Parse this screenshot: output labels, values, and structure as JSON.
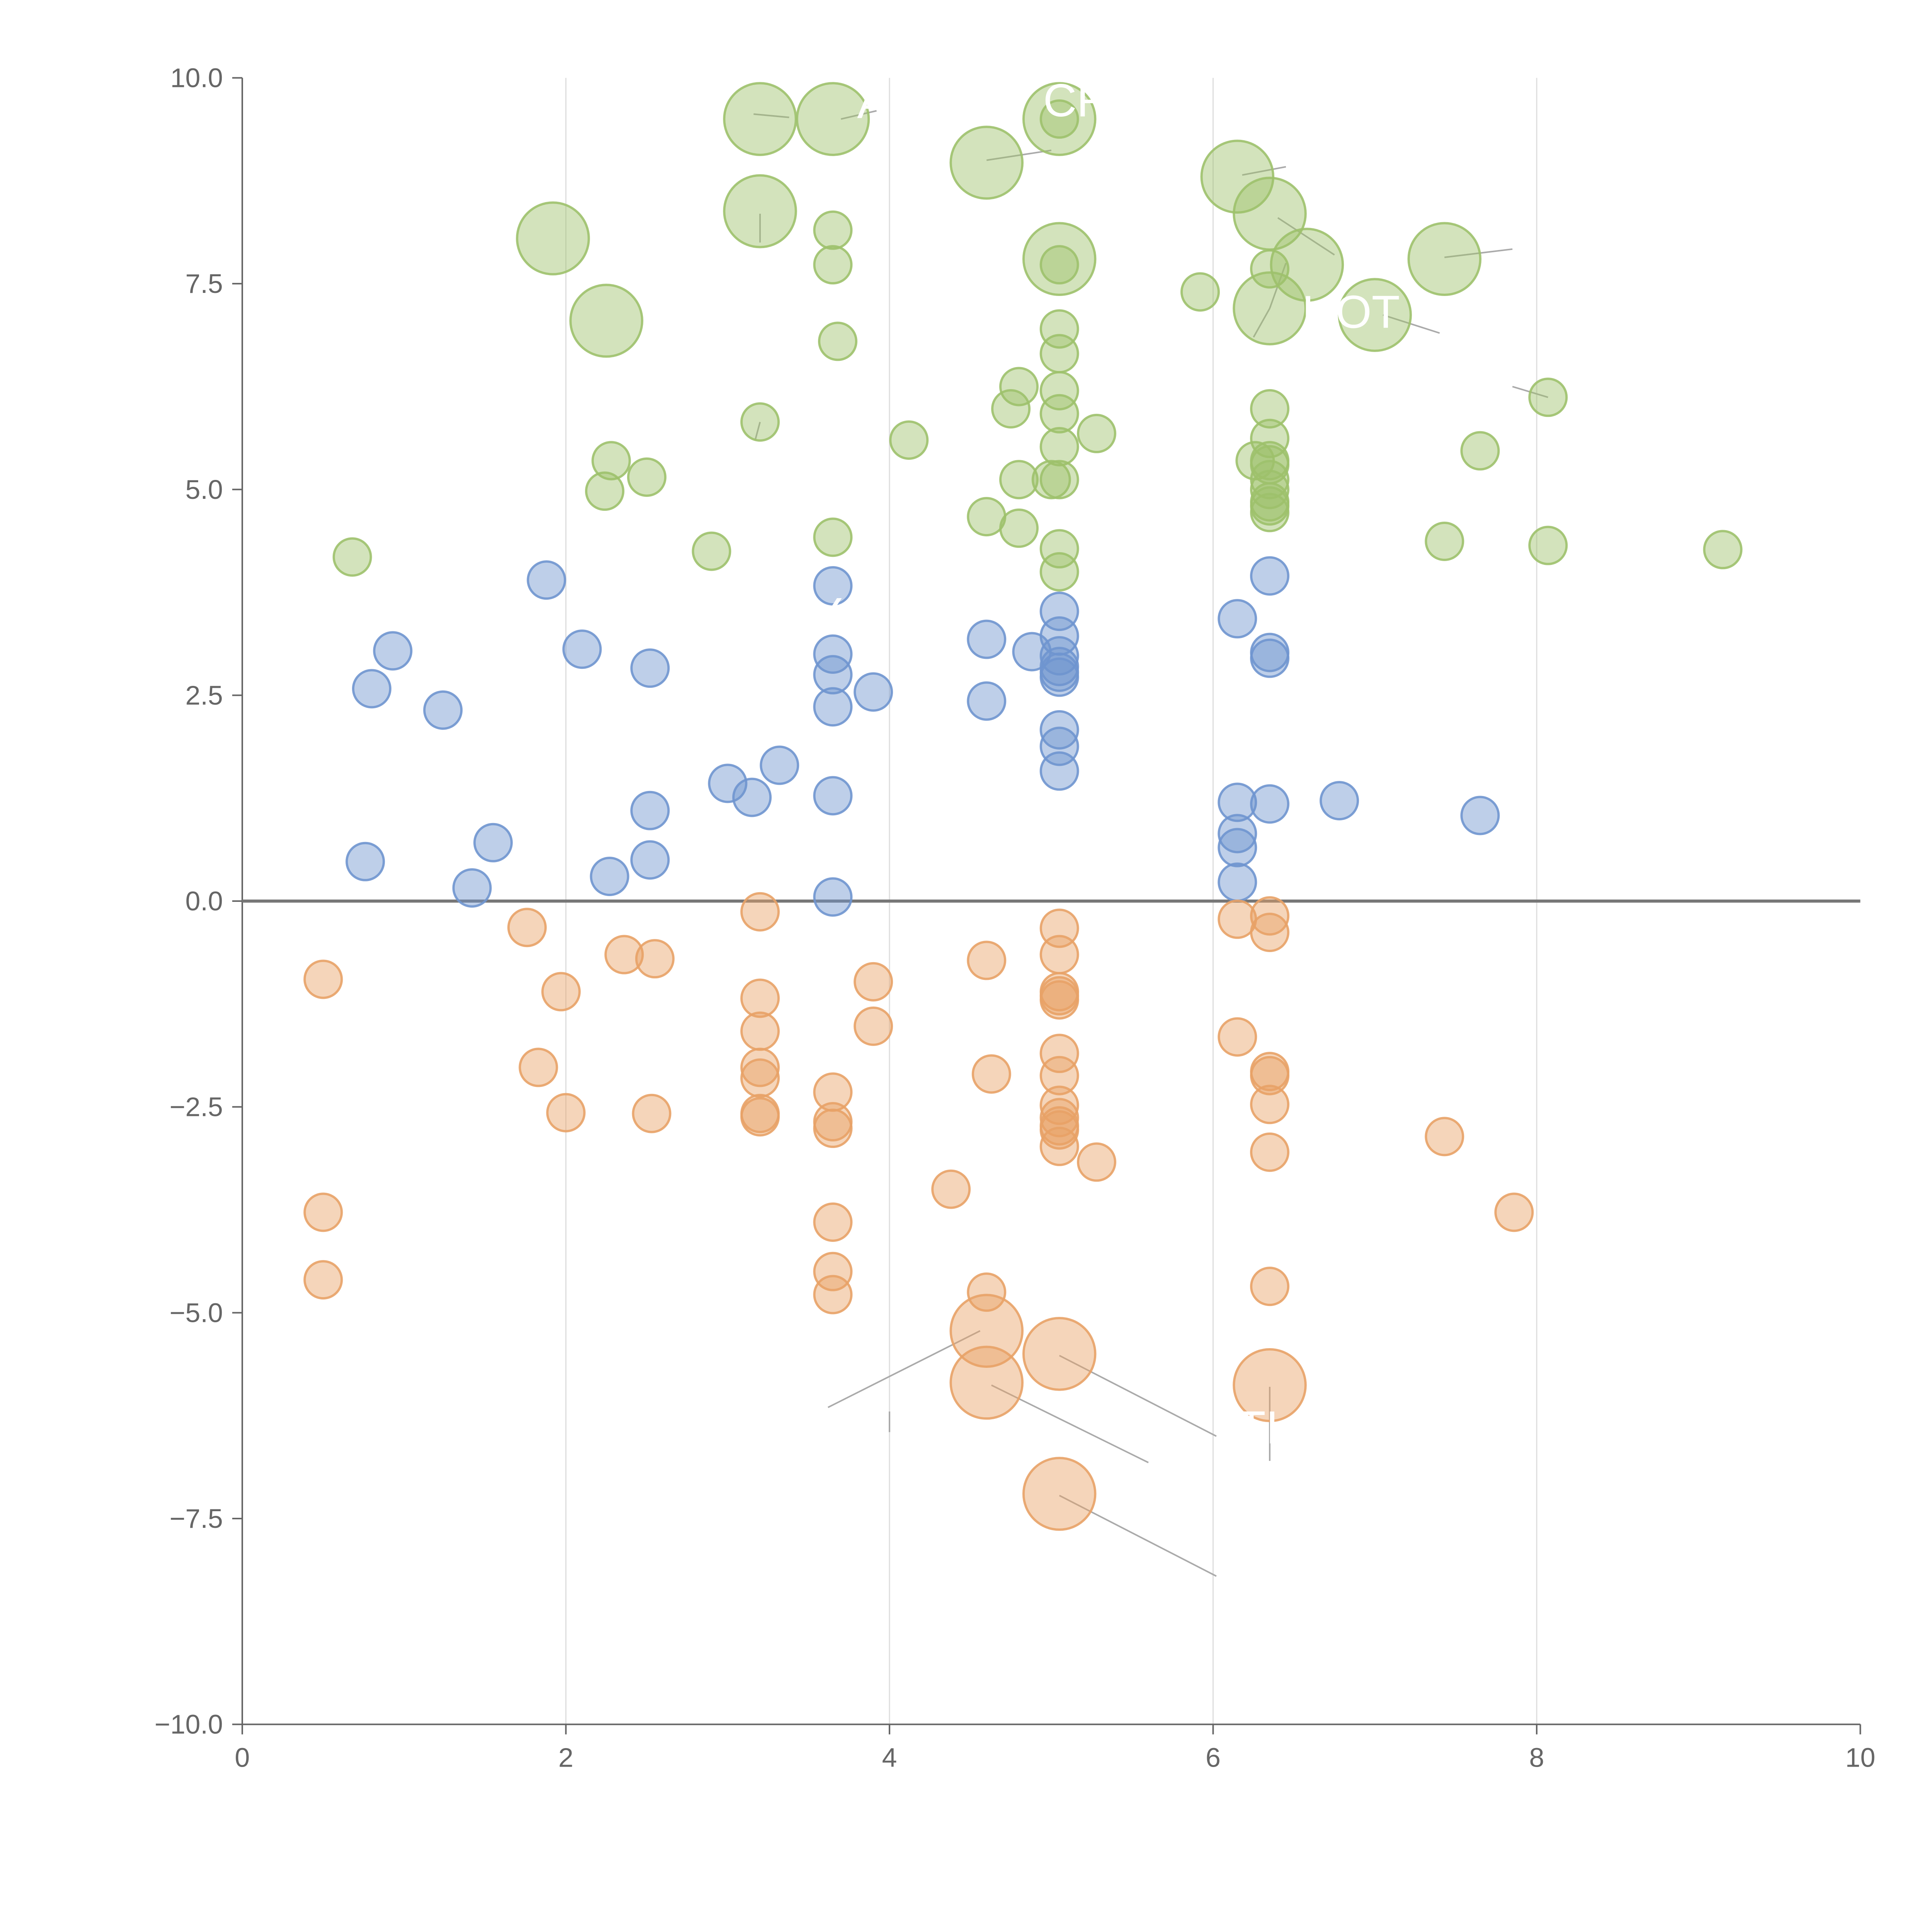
{
  "chart_data": {
    "type": "scatter",
    "title": "",
    "xlabel": "",
    "ylabel": "",
    "xlim": [
      0,
      10
    ],
    "ylim": [
      -10,
      10
    ],
    "grid": "vertical lines at 2, 4, 6, 8",
    "zero_line": true,
    "x_ticks": [
      "0",
      "2",
      "4",
      "6",
      "8",
      "10"
    ],
    "y_ticks": [
      "−10.0",
      "−7.5",
      "−5.0",
      "−2.5",
      "0.0",
      "2.5",
      "5.0",
      "7.5",
      "10.0"
    ],
    "colors": {
      "green": "#9dc16b",
      "blue": "#6f95cf",
      "orange": "#e8a267"
    },
    "series": [
      {
        "name": "green",
        "color": "#9dc16b",
        "points": [
          [
            3.2,
            9.5,
            "large"
          ],
          [
            3.65,
            9.5,
            "large"
          ],
          [
            5.05,
            9.5,
            "large"
          ],
          [
            5.05,
            9.5,
            "small"
          ],
          [
            4.6,
            8.97,
            "large"
          ],
          [
            6.15,
            8.8,
            "large"
          ],
          [
            1.92,
            8.05,
            "large"
          ],
          [
            3.2,
            8.38,
            "large"
          ],
          [
            6.35,
            8.35,
            "large"
          ],
          [
            3.65,
            8.15,
            "small"
          ],
          [
            3.65,
            7.73,
            "small"
          ],
          [
            5.05,
            7.8,
            "large"
          ],
          [
            5.05,
            7.73,
            "small"
          ],
          [
            6.58,
            7.73,
            "large"
          ],
          [
            6.35,
            7.68,
            "small"
          ],
          [
            7.43,
            7.8,
            "large"
          ],
          [
            2.25,
            7.05,
            "large"
          ],
          [
            6.35,
            7.2,
            "large"
          ],
          [
            7.0,
            7.12,
            "large"
          ],
          [
            5.92,
            7.4,
            "small"
          ],
          [
            3.68,
            6.8,
            "small"
          ],
          [
            5.05,
            6.95,
            "small"
          ],
          [
            5.05,
            6.65,
            "small"
          ],
          [
            4.8,
            6.25,
            "small"
          ],
          [
            5.05,
            6.2,
            "small"
          ],
          [
            8.07,
            6.12,
            "small"
          ],
          [
            4.75,
            5.98,
            "small"
          ],
          [
            6.35,
            5.98,
            "small"
          ],
          [
            5.05,
            5.92,
            "small"
          ],
          [
            3.2,
            5.82,
            "small"
          ],
          [
            5.28,
            5.68,
            "small"
          ],
          [
            4.12,
            5.6,
            "small"
          ],
          [
            6.35,
            5.62,
            "small"
          ],
          [
            5.05,
            5.52,
            "small"
          ],
          [
            7.65,
            5.47,
            "small"
          ],
          [
            2.28,
            5.35,
            "small"
          ],
          [
            6.26,
            5.35,
            "small"
          ],
          [
            6.35,
            5.35,
            "small"
          ],
          [
            6.35,
            5.3,
            "small"
          ],
          [
            2.5,
            5.15,
            "small"
          ],
          [
            4.8,
            5.12,
            "small"
          ],
          [
            5.0,
            5.12,
            "small"
          ],
          [
            5.05,
            5.12,
            "small"
          ],
          [
            6.35,
            5.12,
            "small"
          ],
          [
            6.35,
            5.0,
            "small"
          ],
          [
            2.24,
            4.98,
            "small"
          ],
          [
            6.35,
            4.85,
            "small"
          ],
          [
            6.35,
            4.8,
            "small"
          ],
          [
            6.35,
            4.72,
            "small"
          ],
          [
            4.6,
            4.67,
            "small"
          ],
          [
            4.8,
            4.53,
            "small"
          ],
          [
            3.65,
            4.42,
            "small"
          ],
          [
            7.43,
            4.37,
            "small"
          ],
          [
            8.07,
            4.32,
            "small"
          ],
          [
            5.05,
            4.28,
            "small"
          ],
          [
            9.15,
            4.27,
            "small"
          ],
          [
            2.9,
            4.25,
            "small"
          ],
          [
            0.68,
            4.18,
            "small"
          ],
          [
            5.05,
            4.0,
            "small"
          ]
        ]
      },
      {
        "name": "blue",
        "color": "#6f95cf",
        "points": [
          [
            1.88,
            3.9,
            "small"
          ],
          [
            6.35,
            3.95,
            "small"
          ],
          [
            3.65,
            3.83,
            "small"
          ],
          [
            5.05,
            3.52,
            "small"
          ],
          [
            6.15,
            3.43,
            "small"
          ],
          [
            5.05,
            3.22,
            "small"
          ],
          [
            4.6,
            3.18,
            "small"
          ],
          [
            2.1,
            3.06,
            "small"
          ],
          [
            0.93,
            3.04,
            "small"
          ],
          [
            4.88,
            3.03,
            "small"
          ],
          [
            6.35,
            3.02,
            "small"
          ],
          [
            3.65,
            3.0,
            "small"
          ],
          [
            5.05,
            2.98,
            "small"
          ],
          [
            6.35,
            2.95,
            "small"
          ],
          [
            5.05,
            2.85,
            "small"
          ],
          [
            2.52,
            2.83,
            "small"
          ],
          [
            5.05,
            2.78,
            "small"
          ],
          [
            5.05,
            2.72,
            "small"
          ],
          [
            3.65,
            2.75,
            "small"
          ],
          [
            0.8,
            2.58,
            "small"
          ],
          [
            3.9,
            2.54,
            "small"
          ],
          [
            4.6,
            2.43,
            "small"
          ],
          [
            3.65,
            2.36,
            "small"
          ],
          [
            1.24,
            2.32,
            "small"
          ],
          [
            5.05,
            2.08,
            "small"
          ],
          [
            5.05,
            1.88,
            "small"
          ],
          [
            3.32,
            1.65,
            "small"
          ],
          [
            5.05,
            1.58,
            "small"
          ],
          [
            3.0,
            1.43,
            "small"
          ],
          [
            3.15,
            1.26,
            "small"
          ],
          [
            3.65,
            1.28,
            "small"
          ],
          [
            6.15,
            1.2,
            "small"
          ],
          [
            6.35,
            1.18,
            "small"
          ],
          [
            6.78,
            1.22,
            "small"
          ],
          [
            2.52,
            1.1,
            "small"
          ],
          [
            7.65,
            1.04,
            "small"
          ],
          [
            6.15,
            0.82,
            "small"
          ],
          [
            1.55,
            0.71,
            "small"
          ],
          [
            6.15,
            0.65,
            "small"
          ],
          [
            2.52,
            0.5,
            "small"
          ],
          [
            0.76,
            0.48,
            "small"
          ],
          [
            2.27,
            0.3,
            "small"
          ],
          [
            6.15,
            0.23,
            "small"
          ],
          [
            1.42,
            0.16,
            "small"
          ],
          [
            3.65,
            0.05,
            "small"
          ]
        ]
      },
      {
        "name": "orange",
        "color": "#e8a267",
        "points": [
          [
            3.2,
            -0.13,
            "small"
          ],
          [
            6.35,
            -0.18,
            "small"
          ],
          [
            6.15,
            -0.22,
            "small"
          ],
          [
            1.76,
            -0.32,
            "small"
          ],
          [
            5.05,
            -0.33,
            "small"
          ],
          [
            6.35,
            -0.38,
            "small"
          ],
          [
            2.36,
            -0.65,
            "small"
          ],
          [
            5.05,
            -0.65,
            "small"
          ],
          [
            2.55,
            -0.7,
            "small"
          ],
          [
            4.6,
            -0.72,
            "small"
          ],
          [
            0.5,
            -0.95,
            "small"
          ],
          [
            3.9,
            -0.98,
            "small"
          ],
          [
            5.05,
            -1.1,
            "small"
          ],
          [
            1.97,
            -1.1,
            "small"
          ],
          [
            5.05,
            -1.15,
            "small"
          ],
          [
            5.05,
            -1.2,
            "small"
          ],
          [
            3.2,
            -1.18,
            "small"
          ],
          [
            3.9,
            -1.52,
            "small"
          ],
          [
            3.2,
            -1.58,
            "small"
          ],
          [
            6.15,
            -1.65,
            "small"
          ],
          [
            5.05,
            -1.85,
            "small"
          ],
          [
            1.83,
            -2.02,
            "small"
          ],
          [
            3.2,
            -2.02,
            "small"
          ],
          [
            6.35,
            -2.07,
            "small"
          ],
          [
            4.63,
            -2.1,
            "small"
          ],
          [
            6.35,
            -2.12,
            "small"
          ],
          [
            5.05,
            -2.12,
            "small"
          ],
          [
            3.2,
            -2.15,
            "small"
          ],
          [
            3.65,
            -2.32,
            "small"
          ],
          [
            5.05,
            -2.48,
            "small"
          ],
          [
            6.35,
            -2.47,
            "small"
          ],
          [
            2.0,
            -2.57,
            "small"
          ],
          [
            2.53,
            -2.58,
            "small"
          ],
          [
            3.2,
            -2.58,
            "small"
          ],
          [
            3.2,
            -2.62,
            "small"
          ],
          [
            5.05,
            -2.63,
            "small"
          ],
          [
            3.65,
            -2.68,
            "small"
          ],
          [
            5.05,
            -2.73,
            "small"
          ],
          [
            3.65,
            -2.76,
            "small"
          ],
          [
            5.05,
            -2.78,
            "small"
          ],
          [
            7.43,
            -2.86,
            "small"
          ],
          [
            5.05,
            -2.98,
            "small"
          ],
          [
            6.35,
            -3.05,
            "small"
          ],
          [
            5.28,
            -3.17,
            "small"
          ],
          [
            4.38,
            -3.5,
            "small"
          ],
          [
            0.5,
            -3.78,
            "small"
          ],
          [
            7.86,
            -3.78,
            "small"
          ],
          [
            3.65,
            -3.9,
            "small"
          ],
          [
            3.65,
            -4.5,
            "small"
          ],
          [
            0.5,
            -4.6,
            "small"
          ],
          [
            6.35,
            -4.68,
            "small"
          ],
          [
            4.6,
            -4.75,
            "small"
          ],
          [
            3.65,
            -4.78,
            "small"
          ],
          [
            4.6,
            -5.22,
            "large"
          ],
          [
            5.05,
            -5.5,
            "large"
          ],
          [
            4.6,
            -5.85,
            "large"
          ],
          [
            6.35,
            -5.88,
            "large"
          ],
          [
            5.05,
            -7.2,
            "large"
          ]
        ]
      }
    ],
    "labels": [
      {
        "text": "A",
        "x": 3.8,
        "y": 9.7
      },
      {
        "text": "CR",
        "x": 4.95,
        "y": 9.72
      },
      {
        "text": "HOT",
        "x": 6.55,
        "y": 7.15
      },
      {
        "text": "Y",
        "x": 3.52,
        "y": 3.48
      },
      {
        "text": "TI",
        "x": 6.15,
        "y": -6.4
      }
    ],
    "leader_lines": [
      [
        [
          3.38,
          9.52
        ],
        [
          3.16,
          9.56
        ]
      ],
      [
        [
          3.7,
          9.5
        ],
        [
          3.92,
          9.6
        ]
      ],
      [
        [
          4.6,
          9.0
        ],
        [
          5.0,
          9.12
        ]
      ],
      [
        [
          6.18,
          8.82
        ],
        [
          6.45,
          8.92
        ]
      ],
      [
        [
          3.2,
          8.35
        ],
        [
          3.2,
          8.0
        ]
      ],
      [
        [
          6.4,
          8.3
        ],
        [
          6.75,
          7.85
        ]
      ],
      [
        [
          7.43,
          7.82
        ],
        [
          7.85,
          7.92
        ]
      ],
      [
        [
          6.35,
          7.2
        ],
        [
          6.45,
          7.75
        ]
      ],
      [
        [
          7.05,
          7.12
        ],
        [
          7.4,
          6.9
        ]
      ],
      [
        [
          6.35,
          7.2
        ],
        [
          6.25,
          6.85
        ]
      ],
      [
        [
          8.07,
          6.12
        ],
        [
          7.85,
          6.25
        ]
      ],
      [
        [
          3.2,
          5.82
        ],
        [
          3.17,
          5.6
        ]
      ],
      [
        [
          4.56,
          -5.22
        ],
        [
          3.62,
          -6.15
        ]
      ],
      [
        [
          4.63,
          -5.88
        ],
        [
          5.6,
          -6.82
        ]
      ],
      [
        [
          5.05,
          -5.52
        ],
        [
          6.02,
          -6.5
        ]
      ],
      [
        [
          6.35,
          -5.9
        ],
        [
          6.35,
          -6.8
        ]
      ],
      [
        [
          5.05,
          -7.22
        ],
        [
          6.02,
          -8.2
        ]
      ],
      [
        [
          4.0,
          -6.2
        ],
        [
          4.0,
          -6.45
        ]
      ]
    ]
  }
}
